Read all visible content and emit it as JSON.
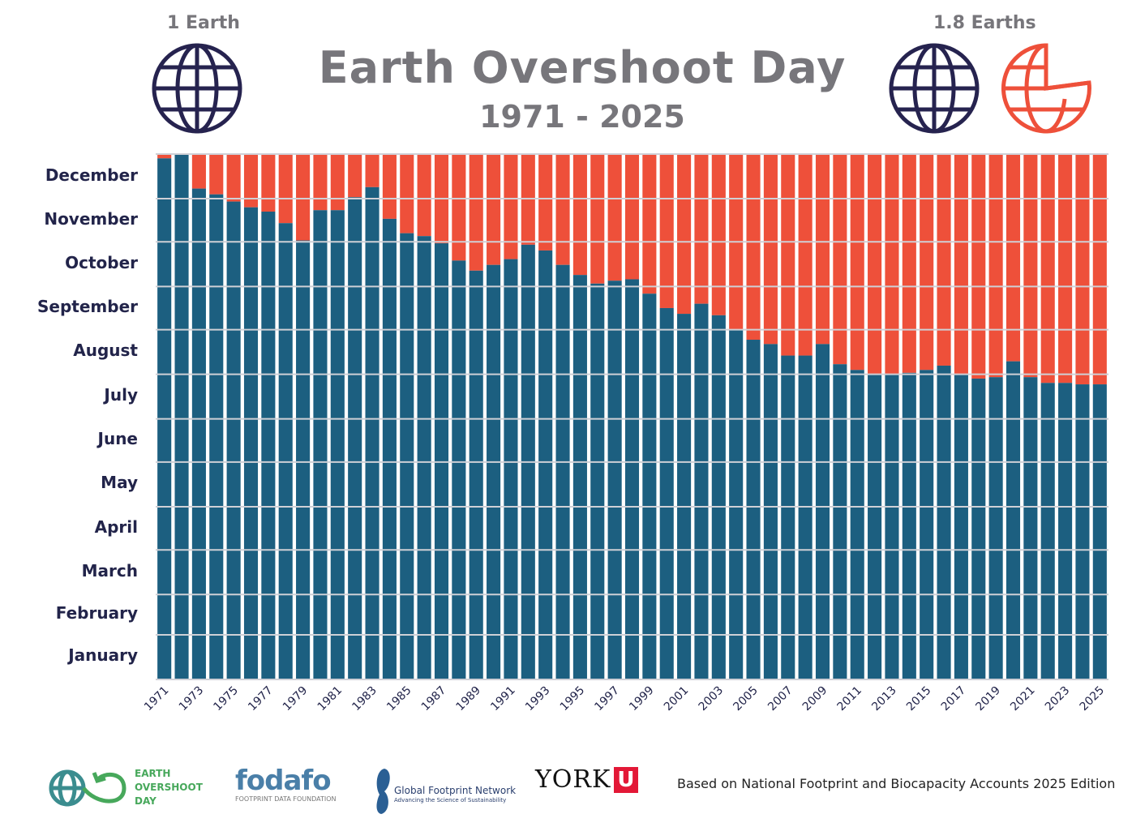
{
  "header": {
    "title": "Earth Overshoot Day",
    "subtitle": "1971 - 2025",
    "left_label": "1 Earth",
    "right_label": "1.8 Earths"
  },
  "icons": {
    "left": "globe-icon",
    "right": [
      "globe-icon",
      "partial-globe-icon"
    ]
  },
  "colors": {
    "overshoot": "#ee503a",
    "within": "#1c5f80",
    "text": "#22244a",
    "title": "#77767b"
  },
  "chart_data": {
    "type": "bar",
    "title": "Earth Overshoot Day",
    "subtitle": "1971 - 2025",
    "y_axis": {
      "type": "date-of-year",
      "tick_labels": [
        "January",
        "February",
        "March",
        "April",
        "May",
        "June",
        "July",
        "August",
        "September",
        "October",
        "November",
        "December"
      ],
      "range": [
        "Jan 1",
        "Dec 31"
      ]
    },
    "grid": true,
    "x": [
      1971,
      1972,
      1973,
      1974,
      1975,
      1976,
      1977,
      1978,
      1979,
      1980,
      1981,
      1982,
      1983,
      1984,
      1985,
      1986,
      1987,
      1988,
      1989,
      1990,
      1991,
      1992,
      1993,
      1994,
      1995,
      1996,
      1997,
      1998,
      1999,
      2000,
      2001,
      2002,
      2003,
      2004,
      2005,
      2006,
      2007,
      2008,
      2009,
      2010,
      2011,
      2012,
      2013,
      2014,
      2015,
      2016,
      2017,
      2018,
      2019,
      2020,
      2021,
      2022,
      2023,
      2024,
      2025
    ],
    "x_tick_labels": [
      "1971",
      "1973",
      "1975",
      "1977",
      "1979",
      "1981",
      "1983",
      "1985",
      "1987",
      "1989",
      "1991",
      "1993",
      "1995",
      "1997",
      "1999",
      "2001",
      "2003",
      "2005",
      "2007",
      "2009",
      "2011",
      "2013",
      "2015",
      "2017",
      "2019",
      "2021",
      "2023",
      "2025"
    ],
    "values": [
      "Dec 28",
      "Dec 31",
      "Dec 7",
      "Dec 3",
      "Nov 28",
      "Nov 24",
      "Nov 21",
      "Nov 13",
      "Nov 1",
      "Nov 22",
      "Nov 22",
      "Dec 1",
      "Dec 8",
      "Nov 16",
      "Nov 6",
      "Nov 4",
      "Oct 30",
      "Oct 18",
      "Oct 11",
      "Oct 15",
      "Oct 19",
      "Oct 29",
      "Oct 25",
      "Oct 15",
      "Oct 8",
      "Oct 2",
      "Oct 4",
      "Oct 5",
      "Sep 25",
      "Sep 15",
      "Sep 11",
      "Sep 18",
      "Sep 10",
      "Aug 31",
      "Aug 24",
      "Aug 21",
      "Aug 13",
      "Aug 13",
      "Aug 21",
      "Aug 7",
      "Aug 3",
      "Jul 31",
      "Jul 31",
      "Aug 1",
      "Aug 3",
      "Aug 6",
      "Jul 31",
      "Jul 28",
      "Jul 29",
      "Aug 9",
      "Jul 29",
      "Jul 25",
      "Jul 25",
      "Jul 24",
      "Jul 24"
    ]
  },
  "footer": {
    "logos": [
      "EARTH OVERSHOOT DAY",
      "fodafo",
      "FOOTPRINT DATA FOUNDATION",
      "Global Footprint Network",
      "Advancing the Science of Sustainability",
      "YORK",
      "U"
    ],
    "note": "Based on National Footprint and Biocapacity Accounts 2025 Edition"
  }
}
